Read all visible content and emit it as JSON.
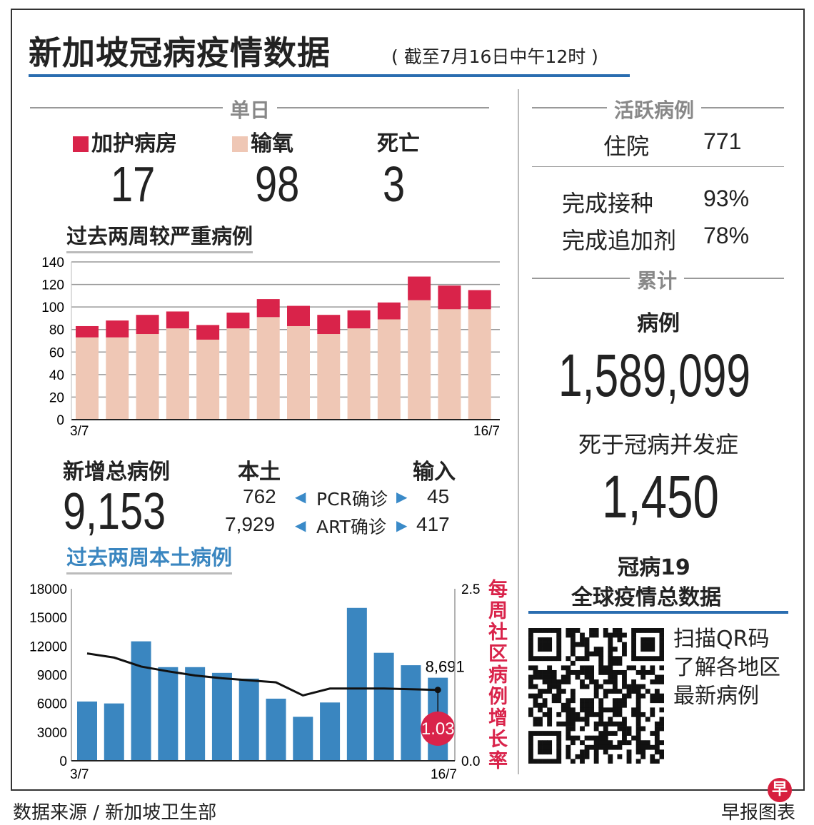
{
  "header": {
    "title": "新加坡冠病疫情数据",
    "subtitle": "( 截至7月16日中午12时 )"
  },
  "daily": {
    "section": "单日",
    "icu_label": "加护病房",
    "icu": "17",
    "oxygen_label": "输氧",
    "oxygen": "98",
    "death_label": "死亡",
    "death": "3"
  },
  "new_cases": {
    "label": "新增总病例",
    "total": "9,153",
    "local_label": "本土",
    "import_label": "输入",
    "pcr_label": "PCR确诊",
    "art_label": "ART确诊",
    "pcr_local": "762",
    "pcr_import": "45",
    "art_local": "7,929",
    "art_import": "417"
  },
  "active": {
    "section": "活跃病例",
    "hosp_label": "住院",
    "hosp": "771",
    "vacc_label": "完成接种",
    "vacc": "93%",
    "booster_label": "完成追加剂",
    "booster": "78%"
  },
  "cumulative": {
    "section": "累计",
    "cases_label": "病例",
    "cases": "1,589,099",
    "deaths_label": "死于冠病并发症",
    "deaths": "1,450"
  },
  "global": {
    "title1": "冠病19",
    "title2": "全球疫情总数据",
    "qr1": "扫描QR码",
    "qr2": "了解各地区",
    "qr3": "最新病例"
  },
  "footer": {
    "source": "数据来源 / 新加坡卫生部",
    "credit": "早报图表",
    "logo": "早"
  },
  "colors": {
    "icu": "#d9234a",
    "oxygen": "#efc7b5",
    "bars": "#3a86c0",
    "line": "#111111",
    "accent": "#2a6db0",
    "rate": "#d9234a"
  },
  "chart_data": [
    {
      "type": "bar",
      "stacked": true,
      "title": "过去两周较严重病例",
      "x_start_label": "3/7",
      "x_end_label": "16/7",
      "ylim": [
        0,
        140
      ],
      "yticks": [
        "0",
        "20",
        "40",
        "60",
        "80",
        "100",
        "120",
        "140"
      ],
      "grid": true,
      "series": [
        {
          "name": "输氧",
          "values": [
            73,
            73,
            76,
            81,
            71,
            81,
            91,
            83,
            76,
            81,
            89,
            106,
            98,
            98
          ]
        },
        {
          "name": "加护病房",
          "values": [
            10,
            15,
            17,
            15,
            13,
            14,
            16,
            18,
            17,
            16,
            15,
            21,
            21,
            17
          ]
        }
      ]
    },
    {
      "type": "bar",
      "title": "过去两周本土病例",
      "x_start_label": "3/7",
      "x_end_label": "16/7",
      "ylim": [
        0,
        18000
      ],
      "yticks": [
        "0",
        "3000",
        "6000",
        "9000",
        "12000",
        "15000",
        "18000"
      ],
      "values": [
        6200,
        6000,
        12500,
        9800,
        9800,
        9200,
        8600,
        6500,
        4600,
        6100,
        16000,
        11300,
        10000,
        8691
      ],
      "last_label": "8,691",
      "line": {
        "name": "每周社区病例增长率",
        "ylim": [
          0,
          2.5
        ],
        "yticks": [
          "0.0",
          "2.5"
        ],
        "values": [
          1.56,
          1.5,
          1.37,
          1.3,
          1.24,
          1.2,
          1.17,
          1.14,
          0.95,
          1.05,
          1.05,
          1.05,
          1.04,
          1.03
        ],
        "last_label": "1.03"
      }
    }
  ]
}
